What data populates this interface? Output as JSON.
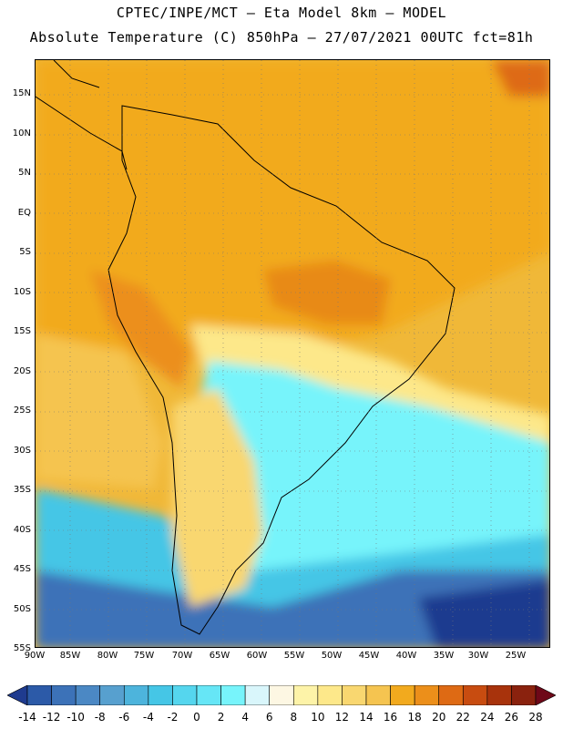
{
  "header": {
    "line1": "CPTEC/INPE/MCT –  Eta Model 8km – MODEL",
    "line2": "Absolute Temperature (C) 850hPa – 27/07/2021 00UTC fct=81h"
  },
  "map": {
    "region": "South America",
    "lat_labels": [
      "15N",
      "10N",
      "5N",
      "EQ",
      "5S",
      "10S",
      "15S",
      "20S",
      "25S",
      "30S",
      "35S",
      "40S",
      "45S",
      "50S",
      "55S"
    ],
    "lon_labels": [
      "90W",
      "85W",
      "80W",
      "75W",
      "70W",
      "65W",
      "60W",
      "55W",
      "50W",
      "45W",
      "40W",
      "35W",
      "30W",
      "25W"
    ],
    "lon_range": [
      -90,
      -20
    ],
    "lat_range": [
      -55,
      20
    ],
    "grid": "dotted"
  },
  "colorbar": {
    "labels": [
      "-14",
      "-12",
      "-10",
      "-8",
      "-6",
      "-4",
      "-2",
      "0",
      "2",
      "4",
      "6",
      "8",
      "10",
      "12",
      "14",
      "16",
      "18",
      "20",
      "22",
      "24",
      "26",
      "28"
    ],
    "colors": [
      "#1f3b8f",
      "#2c5aa8",
      "#3c72b8",
      "#4b88c4",
      "#57a0cf",
      "#4db4dc",
      "#45c6e6",
      "#55d6ee",
      "#66e6f6",
      "#77f4fb",
      "#d9f6fb",
      "#fdf7e3",
      "#fdf3a8",
      "#fde88a",
      "#f9d770",
      "#f5c450",
      "#f2aa1e",
      "#ec8f1a",
      "#de6a14",
      "#c84c10",
      "#a8330c",
      "#8a220e",
      "#6e0818"
    ]
  }
}
